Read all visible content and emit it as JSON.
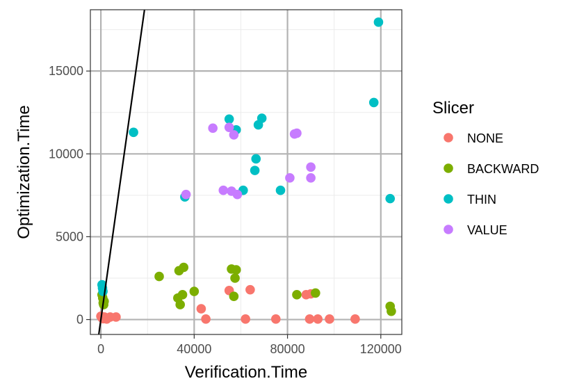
{
  "chart_data": {
    "type": "scatter",
    "title": "",
    "xlabel": "Verification.Time",
    "ylabel": "Optimization.Time",
    "xlim": [
      -4500,
      129000
    ],
    "ylim": [
      -900,
      18700
    ],
    "xticks": [
      0,
      40000,
      80000,
      120000
    ],
    "xtick_labels": [
      "0",
      "40000",
      "80000",
      "120000"
    ],
    "yticks": [
      0,
      5000,
      10000,
      15000
    ],
    "ytick_labels": [
      "0",
      "5000",
      "10000",
      "15000"
    ],
    "grid": true,
    "legend_position": "right",
    "legend_title": "Slicer",
    "reference_line": {
      "type": "abline",
      "intercept": 0,
      "slope": 1
    },
    "series": [
      {
        "name": "NONE",
        "color": "#F8766D",
        "points": [
          [
            0,
            200
          ],
          [
            500,
            100
          ],
          [
            1000,
            50
          ],
          [
            1500,
            150
          ],
          [
            2500,
            30
          ],
          [
            4000,
            150
          ],
          [
            6500,
            150
          ],
          [
            43000,
            650
          ],
          [
            45000,
            30
          ],
          [
            55000,
            1750
          ],
          [
            64000,
            1800
          ],
          [
            62000,
            30
          ],
          [
            75000,
            30
          ],
          [
            88000,
            1500
          ],
          [
            90000,
            1550
          ],
          [
            89500,
            30
          ],
          [
            93000,
            30
          ],
          [
            98000,
            30
          ],
          [
            109000,
            30
          ]
        ]
      },
      {
        "name": "BACKWARD",
        "color": "#7CAE00",
        "points": [
          [
            500,
            1500
          ],
          [
            800,
            1300
          ],
          [
            1000,
            1000
          ],
          [
            1200,
            900
          ],
          [
            1400,
            1100
          ],
          [
            25000,
            2600
          ],
          [
            33000,
            1300
          ],
          [
            33500,
            2950
          ],
          [
            34000,
            900
          ],
          [
            35000,
            1500
          ],
          [
            35500,
            3150
          ],
          [
            40000,
            1700
          ],
          [
            56000,
            3050
          ],
          [
            57000,
            1400
          ],
          [
            58000,
            3000
          ],
          [
            57500,
            2500
          ],
          [
            84000,
            1500
          ],
          [
            92000,
            1600
          ],
          [
            124000,
            800
          ],
          [
            124500,
            500
          ]
        ]
      },
      {
        "name": "THIN",
        "color": "#00BFC4",
        "points": [
          [
            500,
            2100
          ],
          [
            700,
            1900
          ],
          [
            900,
            1700
          ],
          [
            14000,
            11300
          ],
          [
            36000,
            7400
          ],
          [
            55000,
            12100
          ],
          [
            58000,
            11450
          ],
          [
            61000,
            7800
          ],
          [
            66000,
            9000
          ],
          [
            66500,
            9700
          ],
          [
            67500,
            11750
          ],
          [
            69000,
            12150
          ],
          [
            77000,
            7800
          ],
          [
            117000,
            13100
          ],
          [
            119000,
            17950
          ],
          [
            124000,
            7300
          ]
        ]
      },
      {
        "name": "VALUE",
        "color": "#C77CFF",
        "points": [
          [
            36500,
            7550
          ],
          [
            48000,
            11550
          ],
          [
            52500,
            7800
          ],
          [
            55000,
            11600
          ],
          [
            56000,
            7750
          ],
          [
            57000,
            11150
          ],
          [
            58500,
            7550
          ],
          [
            81000,
            8550
          ],
          [
            83000,
            11200
          ],
          [
            84000,
            11250
          ],
          [
            90000,
            9200
          ],
          [
            90000,
            8550
          ]
        ]
      }
    ]
  }
}
